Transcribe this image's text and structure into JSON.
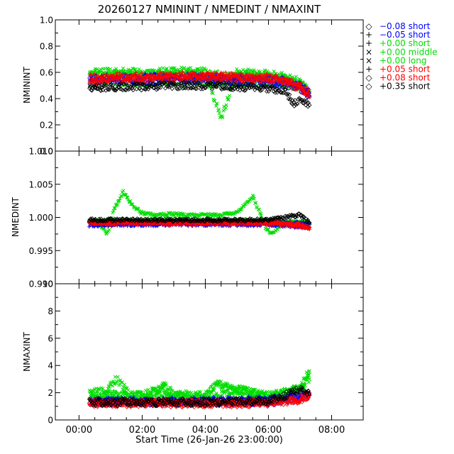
{
  "title": "20260127 NMININT / NMEDINT / NMAXINT",
  "xlabel": "Start Time (26-Jan-26 23:00:00)",
  "xticks": [
    "00:00",
    "02:00",
    "04:00",
    "06:00",
    "08:00"
  ],
  "legend": [
    {
      "symbol": "◇",
      "label": "−0.08 short",
      "color": "#0000ff"
    },
    {
      "symbol": "+",
      "label": "−0.05 short",
      "color": "#0000ff"
    },
    {
      "symbol": "+",
      "label": "+0.00 short",
      "color": "#00dd00"
    },
    {
      "symbol": "×",
      "label": "+0.00 middle",
      "color": "#00dd00"
    },
    {
      "symbol": "×",
      "label": "+0.00 long",
      "color": "#00dd00"
    },
    {
      "symbol": "+",
      "label": "+0.05 short",
      "color": "#ff0000"
    },
    {
      "symbol": "◇",
      "label": "+0.08 short",
      "color": "#ff0000"
    },
    {
      "symbol": "◇",
      "label": "+0.35 short",
      "color": "#000000"
    }
  ],
  "chart_data": [
    {
      "type": "scatter",
      "ylabel": "NMININT",
      "xlim_hours": [
        -0.75,
        9.0
      ],
      "ylim": [
        0.0,
        1.0
      ],
      "yticks": [
        "0.0",
        "0.2",
        "0.4",
        "0.6",
        "0.8",
        "1.0"
      ],
      "series": [
        {
          "name": "−0.08 short",
          "color": "#0000ff",
          "marker": "diamond",
          "x": [
            0.33,
            1.0,
            2.0,
            3.0,
            4.0,
            5.0,
            6.0,
            6.5,
            7.0,
            7.3
          ],
          "y": [
            0.53,
            0.54,
            0.53,
            0.54,
            0.54,
            0.53,
            0.52,
            0.51,
            0.48,
            0.42
          ]
        },
        {
          "name": "−0.05 short",
          "color": "#0000ff",
          "marker": "plus",
          "x": [
            0.33,
            1.0,
            2.0,
            3.0,
            4.0,
            5.0,
            6.0,
            6.5,
            7.0,
            7.3
          ],
          "y": [
            0.55,
            0.56,
            0.56,
            0.57,
            0.57,
            0.56,
            0.55,
            0.54,
            0.5,
            0.45
          ]
        },
        {
          "name": "+0.00 short",
          "color": "#00dd00",
          "marker": "plus",
          "x": [
            0.33,
            1.0,
            2.0,
            3.0,
            4.0,
            5.0,
            6.0,
            6.5,
            7.0,
            7.3
          ],
          "y": [
            0.58,
            0.59,
            0.58,
            0.59,
            0.59,
            0.58,
            0.57,
            0.56,
            0.52,
            0.47
          ]
        },
        {
          "name": "+0.00 middle",
          "color": "#00dd00",
          "marker": "x",
          "x": [
            0.33,
            1.0,
            2.0,
            3.0,
            4.0,
            5.0,
            6.0,
            6.5,
            7.0,
            7.3
          ],
          "y": [
            0.52,
            0.53,
            0.52,
            0.53,
            0.53,
            0.52,
            0.52,
            0.51,
            0.48,
            0.43
          ]
        },
        {
          "name": "+0.00 long",
          "color": "#00dd00",
          "marker": "x",
          "x": [
            0.33,
            1.0,
            2.0,
            3.0,
            4.0,
            4.5,
            5.0,
            6.0,
            6.5,
            7.0,
            7.3
          ],
          "y": [
            0.6,
            0.61,
            0.6,
            0.61,
            0.61,
            0.25,
            0.6,
            0.59,
            0.57,
            0.53,
            0.46
          ]
        },
        {
          "name": "+0.05 short",
          "color": "#ff0000",
          "marker": "plus",
          "x": [
            0.33,
            1.0,
            2.0,
            3.0,
            4.0,
            5.0,
            6.0,
            6.5,
            7.0,
            7.3
          ],
          "y": [
            0.56,
            0.57,
            0.57,
            0.58,
            0.58,
            0.57,
            0.56,
            0.55,
            0.5,
            0.44
          ]
        },
        {
          "name": "+0.08 short",
          "color": "#ff0000",
          "marker": "diamond",
          "x": [
            0.33,
            1.0,
            2.0,
            3.0,
            4.0,
            5.0,
            6.0,
            6.5,
            7.0,
            7.3
          ],
          "y": [
            0.54,
            0.55,
            0.55,
            0.56,
            0.56,
            0.55,
            0.54,
            0.53,
            0.48,
            0.41
          ]
        },
        {
          "name": "+0.35 short",
          "color": "#000000",
          "marker": "diamond",
          "x": [
            0.33,
            1.0,
            2.0,
            3.0,
            4.0,
            5.0,
            6.0,
            6.5,
            6.8,
            7.0,
            7.3
          ],
          "y": [
            0.48,
            0.49,
            0.49,
            0.5,
            0.5,
            0.49,
            0.48,
            0.46,
            0.36,
            0.4,
            0.35
          ]
        }
      ]
    },
    {
      "type": "scatter",
      "ylabel": "NMEDINT",
      "xlim_hours": [
        -0.75,
        9.0
      ],
      "ylim": [
        0.99,
        1.01
      ],
      "yticks": [
        "0.990",
        "0.995",
        "1.000",
        "1.005",
        "1.010"
      ],
      "series": [
        {
          "name": "−0.08 short",
          "color": "#0000ff",
          "marker": "diamond",
          "x": [
            0.33,
            2.0,
            4.0,
            6.0,
            7.3
          ],
          "y": [
            0.9992,
            0.9993,
            0.9993,
            0.9993,
            0.999
          ]
        },
        {
          "name": "−0.05 short",
          "color": "#0000ff",
          "marker": "plus",
          "x": [
            0.33,
            2.0,
            4.0,
            6.0,
            7.3
          ],
          "y": [
            0.9988,
            0.9989,
            0.9989,
            0.9989,
            0.9985
          ]
        },
        {
          "name": "+0.00 short",
          "color": "#00dd00",
          "marker": "plus",
          "x": [
            0.33,
            2.0,
            4.0,
            6.0,
            7.3
          ],
          "y": [
            0.9995,
            0.9995,
            0.9995,
            0.9995,
            0.9993
          ]
        },
        {
          "name": "+0.00 middle",
          "color": "#00dd00",
          "marker": "x",
          "x": [
            0.33,
            2.0,
            4.0,
            6.0,
            7.3
          ],
          "y": [
            0.9994,
            0.9994,
            0.9994,
            0.9994,
            0.9991
          ]
        },
        {
          "name": "+0.00 long",
          "color": "#00dd00",
          "marker": "x",
          "x": [
            0.33,
            0.6,
            0.9,
            1.1,
            1.4,
            1.7,
            2.0,
            2.5,
            3.0,
            3.5,
            4.0,
            4.5,
            5.0,
            5.3,
            5.5,
            5.7,
            5.9,
            6.1,
            6.4,
            6.8,
            7.3
          ],
          "y": [
            0.9995,
            0.999,
            0.9975,
            1.001,
            1.0038,
            1.0018,
            1.0006,
            1.0003,
            1.0005,
            1.0003,
            1.0004,
            1.0003,
            1.0008,
            1.002,
            1.0032,
            1.001,
            0.9985,
            0.9975,
            0.9988,
            0.9992,
            0.999
          ]
        },
        {
          "name": "+0.05 short",
          "color": "#ff0000",
          "marker": "plus",
          "x": [
            0.33,
            2.0,
            4.0,
            6.0,
            7.0,
            7.3
          ],
          "y": [
            0.9993,
            0.9993,
            0.9993,
            0.9993,
            0.999,
            0.9982
          ]
        },
        {
          "name": "+0.08 short",
          "color": "#ff0000",
          "marker": "diamond",
          "x": [
            0.33,
            2.0,
            4.0,
            6.0,
            7.3
          ],
          "y": [
            0.9991,
            0.9991,
            0.9991,
            0.9991,
            0.9985
          ]
        },
        {
          "name": "+0.35 short",
          "color": "#000000",
          "marker": "diamond",
          "x": [
            0.33,
            2.0,
            4.0,
            6.0,
            7.0,
            7.3
          ],
          "y": [
            0.9996,
            0.9996,
            0.9996,
            0.9996,
            1.0004,
            0.9992
          ]
        }
      ]
    },
    {
      "type": "scatter",
      "ylabel": "NMAXINT",
      "xlim_hours": [
        -0.75,
        9.0
      ],
      "ylim": [
        0,
        10
      ],
      "yticks": [
        "0",
        "2",
        "4",
        "6",
        "8",
        "10"
      ],
      "series": [
        {
          "name": "−0.08 short",
          "color": "#0000ff",
          "marker": "diamond",
          "x": [
            0.33,
            2.0,
            4.0,
            6.0,
            7.0,
            7.3
          ],
          "y": [
            1.3,
            1.3,
            1.3,
            1.3,
            1.6,
            1.8
          ]
        },
        {
          "name": "−0.05 short",
          "color": "#0000ff",
          "marker": "plus",
          "x": [
            0.33,
            2.0,
            4.0,
            6.0,
            7.0,
            7.3
          ],
          "y": [
            1.4,
            1.4,
            1.4,
            1.5,
            1.8,
            2.0
          ]
        },
        {
          "name": "+0.00 short",
          "color": "#00dd00",
          "marker": "plus",
          "x": [
            0.33,
            1.0,
            2.0,
            3.0,
            4.0,
            4.35,
            5.0,
            6.0,
            7.0,
            7.3
          ],
          "y": [
            1.8,
            1.9,
            1.8,
            1.8,
            1.7,
            2.8,
            1.8,
            1.8,
            2.3,
            3.4
          ]
        },
        {
          "name": "+0.00 middle",
          "color": "#00dd00",
          "marker": "x",
          "x": [
            0.33,
            1.0,
            2.0,
            2.7,
            3.0,
            4.0,
            5.0,
            6.0,
            7.0,
            7.3
          ],
          "y": [
            1.6,
            1.7,
            1.6,
            2.3,
            1.6,
            1.6,
            2.2,
            1.7,
            2.2,
            3.0
          ]
        },
        {
          "name": "+0.00 long",
          "color": "#00dd00",
          "marker": "x",
          "x": [
            0.33,
            0.8,
            1.2,
            1.6,
            2.0,
            2.7,
            3.0,
            4.0,
            4.4,
            5.0,
            5.5,
            6.0,
            6.5,
            7.0,
            7.3
          ],
          "y": [
            2.0,
            2.1,
            3.0,
            1.9,
            1.8,
            2.5,
            1.9,
            1.8,
            2.6,
            2.3,
            2.0,
            1.8,
            2.0,
            2.4,
            3.6
          ]
        },
        {
          "name": "+0.05 short",
          "color": "#ff0000",
          "marker": "plus",
          "x": [
            0.33,
            2.0,
            4.0,
            6.0,
            7.0,
            7.3
          ],
          "y": [
            1.3,
            1.3,
            1.3,
            1.3,
            1.6,
            1.9
          ]
        },
        {
          "name": "+0.08 short",
          "color": "#ff0000",
          "marker": "diamond",
          "x": [
            0.33,
            2.0,
            4.0,
            6.0,
            7.0,
            7.3
          ],
          "y": [
            1.2,
            1.2,
            1.2,
            1.2,
            1.5,
            1.8
          ]
        },
        {
          "name": "+0.35 short",
          "color": "#000000",
          "marker": "diamond",
          "x": [
            0.33,
            2.0,
            4.0,
            6.0,
            6.8,
            7.0,
            7.3
          ],
          "y": [
            1.3,
            1.3,
            1.3,
            1.4,
            2.0,
            2.4,
            1.9
          ]
        }
      ]
    }
  ]
}
